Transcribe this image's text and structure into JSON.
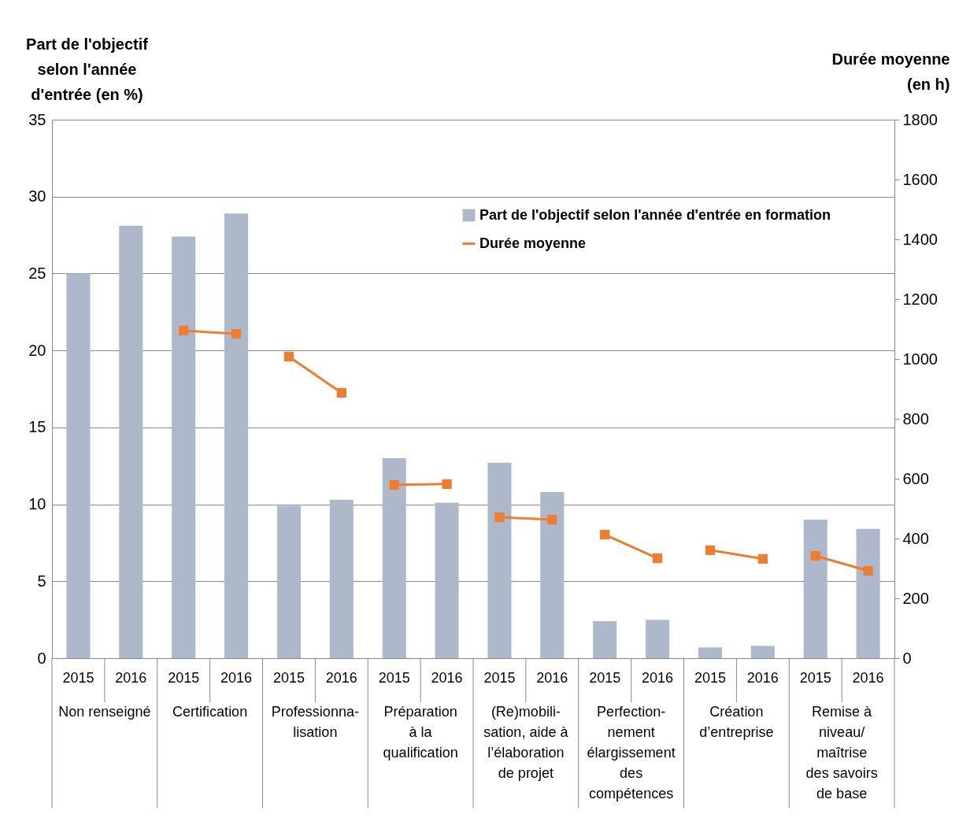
{
  "chart_data": {
    "type": "bar",
    "categories": [
      "2015",
      "2016",
      "2015",
      "2016",
      "2015",
      "2016",
      "2015",
      "2016",
      "2015",
      "2016",
      "2015",
      "2016",
      "2015",
      "2016",
      "2015",
      "2016"
    ],
    "annotations": [
      "Non renseigné",
      "Certification",
      "Professionna-\nlisation",
      "Préparation\nà la\nqualification",
      "(Re)mobili-\nsation, aide à\nl’élaboration\nde projet",
      "Perfection-\nnement\nélargissement\ndes\ncompétences",
      "Création\nd’entreprise",
      "Remise à\nniveau/\nmaîtrise\ndes savoirs\nde base"
    ],
    "ylabel": "Part de l'objectif\nselon l'année\nd'entrée  (en %)",
    "y2label": "Durée moyenne\n(en h)",
    "ylim": [
      0,
      35
    ],
    "yticks": [
      0,
      5,
      10,
      15,
      20,
      25,
      30,
      35
    ],
    "y2lim": [
      0,
      1800
    ],
    "y2ticks": [
      0,
      200,
      400,
      600,
      800,
      1000,
      1200,
      1400,
      1600,
      1800
    ],
    "grid": "y",
    "legend": "top right",
    "marker": "square",
    "series": [
      {
        "name": "Part de l'objectif selon l'année d'entrée en formation",
        "color": "#adb9ca",
        "values": [
          25.0,
          28.1,
          27.4,
          28.9,
          9.9,
          10.3,
          13.0,
          10.1,
          12.7,
          10.8,
          2.4,
          2.5,
          0.7,
          0.8,
          9.0,
          8.4
        ]
      },
      {
        "name": "Durée moyenne",
        "type": "line",
        "axis": "y2",
        "color": "#ed7d31",
        "values": [
          null,
          null,
          1095,
          1084,
          1008,
          887,
          579,
          582,
          471,
          463,
          413,
          334,
          361,
          332,
          342,
          292
        ]
      }
    ]
  }
}
